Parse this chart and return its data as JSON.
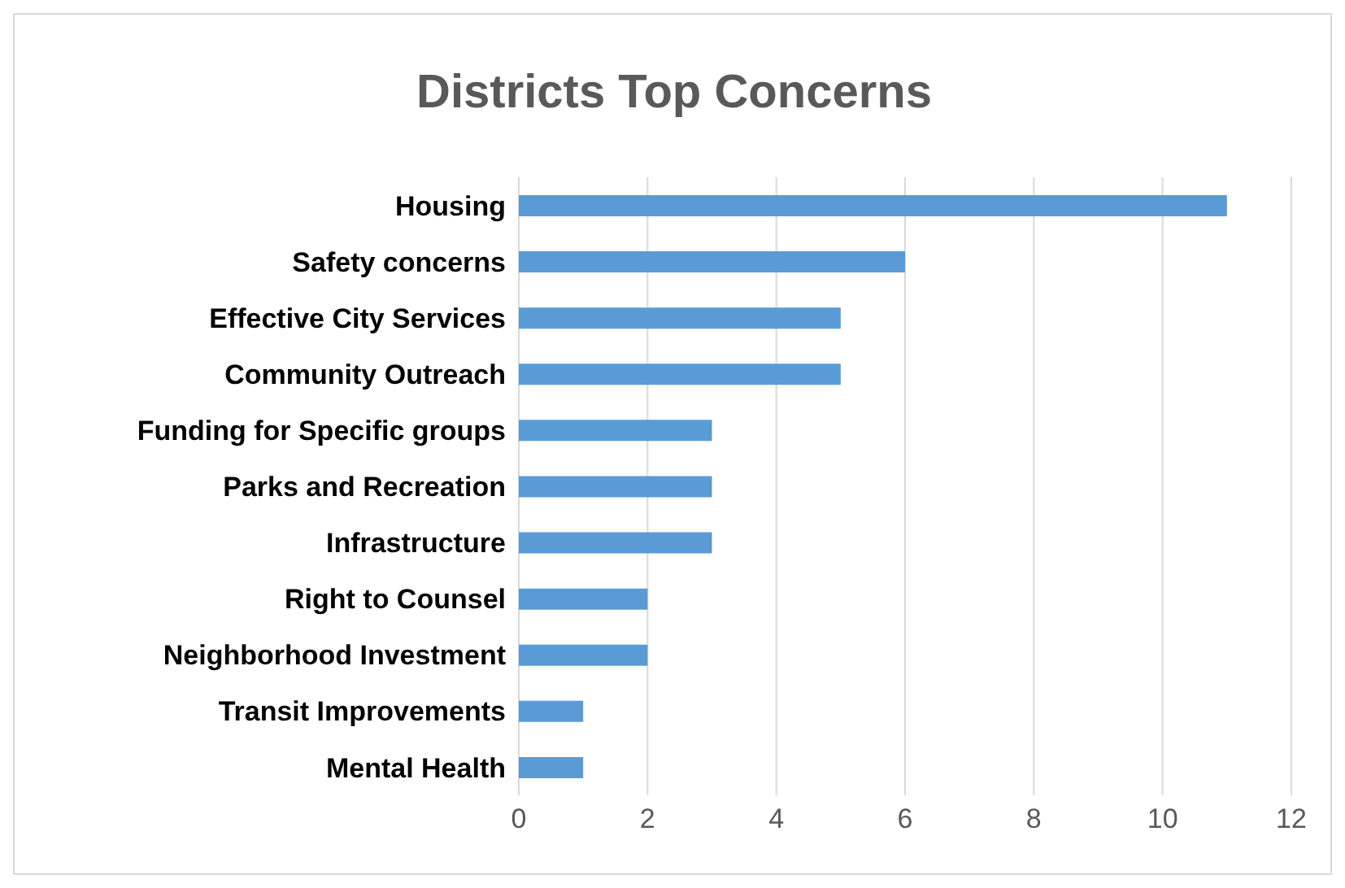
{
  "chart_data": {
    "type": "bar",
    "title": "Districts Top Concerns",
    "orientation": "horizontal",
    "categories": [
      "Housing",
      "Safety concerns",
      "Effective City Services",
      "Community Outreach",
      "Funding for Specific groups",
      "Parks and Recreation",
      "Infrastructure",
      "Right to Counsel",
      "Neighborhood Investment",
      "Transit Improvements",
      "Mental Health"
    ],
    "values": [
      11,
      6,
      5,
      5,
      3,
      3,
      3,
      2,
      2,
      1,
      1
    ],
    "color": "#5b9bd5",
    "xlim": [
      0,
      12
    ],
    "xticks": [
      0,
      2,
      4,
      6,
      8,
      10,
      12
    ],
    "grid": "x"
  }
}
